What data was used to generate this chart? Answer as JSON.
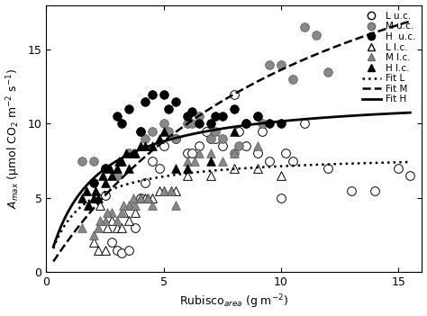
{
  "title": "",
  "xlabel": "Rubisco$_{area}$ (g m$^{-2}$)",
  "ylabel": "$A_{max}$ (μmol CO$_2$ m$^{-2}$ s$^{-1}$)",
  "xlim": [
    0,
    16
  ],
  "ylim": [
    0,
    18
  ],
  "xticks": [
    0,
    5,
    10,
    15
  ],
  "yticks": [
    0,
    5,
    10,
    15
  ],
  "L_uc": [
    [
      2.5,
      5.2
    ],
    [
      2.8,
      2.0
    ],
    [
      3.0,
      1.5
    ],
    [
      3.2,
      1.3
    ],
    [
      3.5,
      1.5
    ],
    [
      3.8,
      3.0
    ],
    [
      4.0,
      5.0
    ],
    [
      4.2,
      6.0
    ],
    [
      4.5,
      7.5
    ],
    [
      4.8,
      7.0
    ],
    [
      5.0,
      8.5
    ],
    [
      5.5,
      9.0
    ],
    [
      6.0,
      8.0
    ],
    [
      6.5,
      8.5
    ],
    [
      7.0,
      9.0
    ],
    [
      7.5,
      8.5
    ],
    [
      8.0,
      12.0
    ],
    [
      8.5,
      8.5
    ],
    [
      9.0,
      8.0
    ],
    [
      9.5,
      7.5
    ],
    [
      10.0,
      5.0
    ],
    [
      10.5,
      7.5
    ],
    [
      11.0,
      10.0
    ],
    [
      12.0,
      7.0
    ],
    [
      13.0,
      5.5
    ],
    [
      14.0,
      5.5
    ],
    [
      15.0,
      7.0
    ],
    [
      15.5,
      6.5
    ],
    [
      6.2,
      8.0
    ],
    [
      6.8,
      9.5
    ],
    [
      7.2,
      9.0
    ],
    [
      8.2,
      9.5
    ],
    [
      9.2,
      9.5
    ],
    [
      10.2,
      8.0
    ]
  ],
  "M_uc": [
    [
      1.5,
      7.5
    ],
    [
      2.0,
      7.5
    ],
    [
      2.5,
      7.0
    ],
    [
      3.0,
      6.5
    ],
    [
      3.5,
      8.0
    ],
    [
      4.0,
      9.5
    ],
    [
      4.5,
      9.5
    ],
    [
      5.0,
      10.0
    ],
    [
      5.5,
      9.0
    ],
    [
      6.0,
      10.0
    ],
    [
      6.5,
      10.5
    ],
    [
      7.0,
      9.0
    ],
    [
      7.5,
      9.0
    ],
    [
      8.0,
      8.0
    ],
    [
      8.5,
      10.0
    ],
    [
      9.0,
      10.5
    ],
    [
      9.5,
      14.0
    ],
    [
      10.0,
      14.0
    ],
    [
      10.5,
      13.0
    ],
    [
      11.0,
      16.5
    ],
    [
      11.5,
      16.0
    ],
    [
      12.0,
      13.5
    ],
    [
      4.2,
      9.0
    ],
    [
      5.2,
      9.5
    ],
    [
      6.2,
      10.0
    ],
    [
      7.2,
      9.5
    ],
    [
      8.2,
      8.5
    ],
    [
      9.2,
      10.0
    ]
  ],
  "H_uc": [
    [
      2.0,
      6.0
    ],
    [
      2.5,
      7.0
    ],
    [
      3.0,
      10.5
    ],
    [
      3.5,
      11.0
    ],
    [
      4.0,
      9.5
    ],
    [
      4.5,
      12.0
    ],
    [
      5.0,
      12.0
    ],
    [
      5.5,
      11.5
    ],
    [
      6.0,
      10.5
    ],
    [
      6.5,
      10.0
    ],
    [
      7.0,
      10.0
    ],
    [
      7.5,
      10.5
    ],
    [
      8.0,
      11.0
    ],
    [
      8.5,
      10.0
    ],
    [
      9.0,
      10.5
    ],
    [
      9.5,
      10.0
    ],
    [
      10.0,
      10.0
    ],
    [
      3.2,
      10.0
    ],
    [
      4.2,
      11.5
    ],
    [
      5.2,
      11.0
    ],
    [
      6.2,
      10.8
    ],
    [
      7.2,
      10.5
    ]
  ],
  "L_lc": [
    [
      1.8,
      4.5
    ],
    [
      2.0,
      2.0
    ],
    [
      2.2,
      1.5
    ],
    [
      2.5,
      1.5
    ],
    [
      2.8,
      3.5
    ],
    [
      3.0,
      3.0
    ],
    [
      3.2,
      3.0
    ],
    [
      3.5,
      3.5
    ],
    [
      3.8,
      4.0
    ],
    [
      4.0,
      5.0
    ],
    [
      4.2,
      5.0
    ],
    [
      4.5,
      5.0
    ],
    [
      5.0,
      5.5
    ],
    [
      5.5,
      5.5
    ],
    [
      6.0,
      6.5
    ],
    [
      7.0,
      6.5
    ],
    [
      8.0,
      7.0
    ],
    [
      9.0,
      7.0
    ],
    [
      10.0,
      6.5
    ],
    [
      2.3,
      4.5
    ],
    [
      2.6,
      3.0
    ],
    [
      3.3,
      4.0
    ],
    [
      3.7,
      4.5
    ],
    [
      4.3,
      5.0
    ],
    [
      4.8,
      5.5
    ],
    [
      5.3,
      5.5
    ]
  ],
  "M_lc": [
    [
      1.5,
      3.0
    ],
    [
      2.0,
      2.5
    ],
    [
      2.2,
      3.0
    ],
    [
      2.5,
      3.5
    ],
    [
      2.8,
      4.0
    ],
    [
      3.0,
      3.5
    ],
    [
      3.2,
      4.0
    ],
    [
      3.5,
      4.5
    ],
    [
      3.8,
      4.5
    ],
    [
      4.0,
      5.0
    ],
    [
      4.5,
      4.5
    ],
    [
      5.0,
      5.5
    ],
    [
      5.5,
      4.5
    ],
    [
      6.0,
      7.5
    ],
    [
      6.5,
      8.0
    ],
    [
      7.0,
      8.0
    ],
    [
      7.5,
      7.5
    ],
    [
      8.0,
      8.0
    ],
    [
      9.0,
      8.5
    ],
    [
      2.3,
      3.5
    ],
    [
      2.6,
      4.0
    ],
    [
      3.3,
      4.5
    ],
    [
      3.7,
      5.0
    ],
    [
      4.3,
      5.0
    ],
    [
      5.3,
      5.5
    ],
    [
      6.3,
      7.5
    ]
  ],
  "H_lc": [
    [
      1.5,
      5.0
    ],
    [
      1.8,
      4.5
    ],
    [
      2.0,
      5.0
    ],
    [
      2.2,
      5.0
    ],
    [
      2.5,
      6.0
    ],
    [
      2.8,
      6.5
    ],
    [
      3.0,
      7.0
    ],
    [
      3.2,
      7.5
    ],
    [
      3.5,
      7.0
    ],
    [
      3.8,
      8.0
    ],
    [
      4.0,
      8.5
    ],
    [
      4.5,
      8.5
    ],
    [
      5.0,
      9.5
    ],
    [
      5.5,
      7.0
    ],
    [
      6.0,
      7.0
    ],
    [
      7.0,
      7.5
    ],
    [
      8.0,
      9.5
    ],
    [
      1.7,
      5.5
    ],
    [
      2.1,
      5.5
    ],
    [
      2.4,
      6.5
    ],
    [
      2.7,
      7.0
    ],
    [
      3.1,
      7.5
    ],
    [
      3.4,
      8.0
    ],
    [
      3.7,
      8.0
    ],
    [
      4.2,
      8.5
    ],
    [
      4.8,
      9.0
    ]
  ],
  "fit_L": {
    "Amax": 8.0,
    "K": 1.2
  },
  "fit_M": {
    "Amax": 30.0,
    "K": 12.0
  },
  "fit_H": {
    "Amax": 12.0,
    "K": 1.8
  }
}
